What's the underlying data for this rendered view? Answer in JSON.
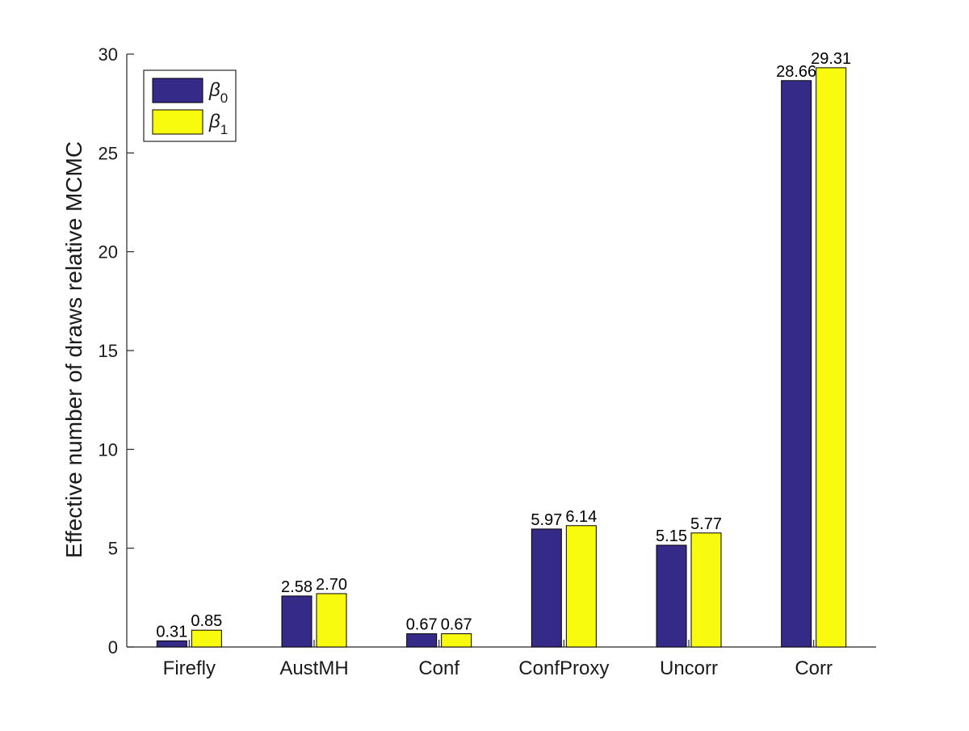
{
  "chart_data": {
    "type": "bar",
    "categories": [
      "Firefly",
      "AustMH",
      "Conf",
      "ConfProxy",
      "Uncorr",
      "Corr"
    ],
    "series": [
      {
        "name": "β0",
        "symbol": "β",
        "subscript": "0",
        "color": "#352a87",
        "values": [
          0.31,
          2.58,
          0.67,
          5.97,
          5.15,
          28.66
        ],
        "labels": [
          "0.31",
          "2.58",
          "0.67",
          "5.97",
          "5.15",
          "28.66"
        ]
      },
      {
        "name": "β1",
        "symbol": "β",
        "subscript": "1",
        "color": "#f9fb0e",
        "values": [
          0.85,
          2.7,
          0.67,
          6.14,
          5.77,
          29.31
        ],
        "labels": [
          "0.85",
          "2.70",
          "0.67",
          "6.14",
          "5.77",
          "29.31"
        ]
      }
    ],
    "title": "",
    "xlabel": "",
    "ylabel": "Effective number of draws relative MCMC",
    "ylim": [
      0,
      30
    ],
    "yticks": [
      0,
      5,
      10,
      15,
      20,
      25,
      30
    ],
    "grid": false,
    "legend_position": "top-left"
  }
}
